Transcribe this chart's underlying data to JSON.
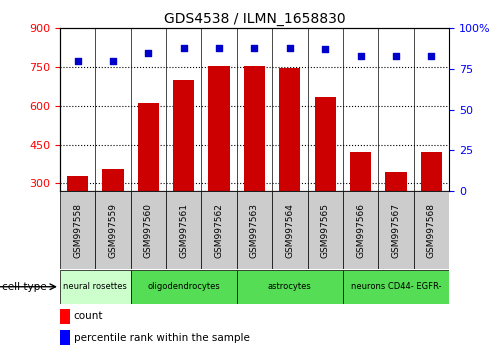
{
  "title": "GDS4538 / ILMN_1658830",
  "samples": [
    "GSM997558",
    "GSM997559",
    "GSM997560",
    "GSM997561",
    "GSM997562",
    "GSM997563",
    "GSM997564",
    "GSM997565",
    "GSM997566",
    "GSM997567",
    "GSM997568"
  ],
  "counts": [
    330,
    355,
    610,
    700,
    755,
    755,
    745,
    635,
    420,
    345,
    420
  ],
  "percentile_ranks": [
    80,
    80,
    85,
    88,
    88,
    88,
    88,
    87,
    83,
    83,
    83
  ],
  "ylim_left": [
    270,
    900
  ],
  "ylim_right": [
    0,
    100
  ],
  "yticks_left": [
    300,
    450,
    600,
    750,
    900
  ],
  "yticks_right": [
    0,
    25,
    50,
    75,
    100
  ],
  "bar_color": "#cc0000",
  "dot_color": "#0000cc",
  "cell_types": [
    {
      "label": "neural rosettes",
      "start": 0,
      "end": 2,
      "color": "#ccffcc"
    },
    {
      "label": "oligodendrocytes",
      "start": 2,
      "end": 5,
      "color": "#55dd55"
    },
    {
      "label": "astrocytes",
      "start": 5,
      "end": 8,
      "color": "#55dd55"
    },
    {
      "label": "neurons CD44- EGFR-",
      "start": 8,
      "end": 11,
      "color": "#55dd55"
    }
  ],
  "legend_count_label": "count",
  "legend_pct_label": "percentile rank within the sample",
  "cell_type_label": "cell type",
  "bg_sample_row": "#cccccc",
  "fig_width": 4.99,
  "fig_height": 3.54,
  "dpi": 100
}
